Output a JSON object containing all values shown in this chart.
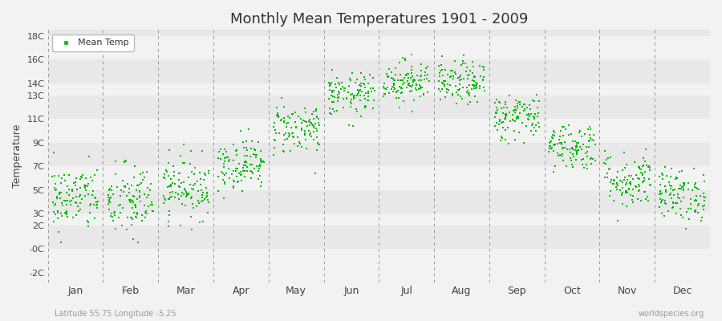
{
  "title": "Monthly Mean Temperatures 1901 - 2009",
  "ylabel": "Temperature",
  "xlabel_note": "Latitude 55.75 Longitude -5.25",
  "watermark": "worldspecies.org",
  "dot_color": "#00bb00",
  "background_color": "#f2f2f2",
  "plot_bg_color": "#f2f2f2",
  "band_light": "#f2f2f2",
  "band_dark": "#e8e8e8",
  "ytick_vals": [
    -2,
    0,
    2,
    3,
    5,
    7,
    9,
    11,
    13,
    14,
    16,
    18
  ],
  "ytick_labels": [
    "-2C",
    "-0C",
    "2C",
    "3C",
    "5C",
    "7C",
    "9C",
    "11C",
    "13C",
    "14C",
    "16C",
    "18C"
  ],
  "ylim": [
    -2.8,
    18.5
  ],
  "months": [
    "Jan",
    "Feb",
    "Mar",
    "Apr",
    "May",
    "Jun",
    "Jul",
    "Aug",
    "Sep",
    "Oct",
    "Nov",
    "Dec"
  ],
  "month_centers": [
    0.5,
    1.5,
    2.5,
    3.5,
    4.5,
    5.5,
    6.5,
    7.5,
    8.5,
    9.5,
    10.5,
    11.5
  ],
  "monthly_means": [
    4.3,
    4.0,
    5.2,
    7.2,
    10.2,
    13.0,
    14.2,
    14.0,
    11.2,
    8.7,
    5.8,
    4.6
  ],
  "monthly_stds": [
    1.4,
    1.6,
    1.3,
    1.1,
    1.1,
    0.9,
    0.9,
    0.9,
    1.0,
    1.0,
    1.2,
    1.1
  ],
  "n_years": 109,
  "seed": 42,
  "title_fontsize": 13,
  "axis_label_fontsize": 9,
  "tick_fontsize": 8,
  "watermark_fontsize": 7,
  "note_fontsize": 7
}
